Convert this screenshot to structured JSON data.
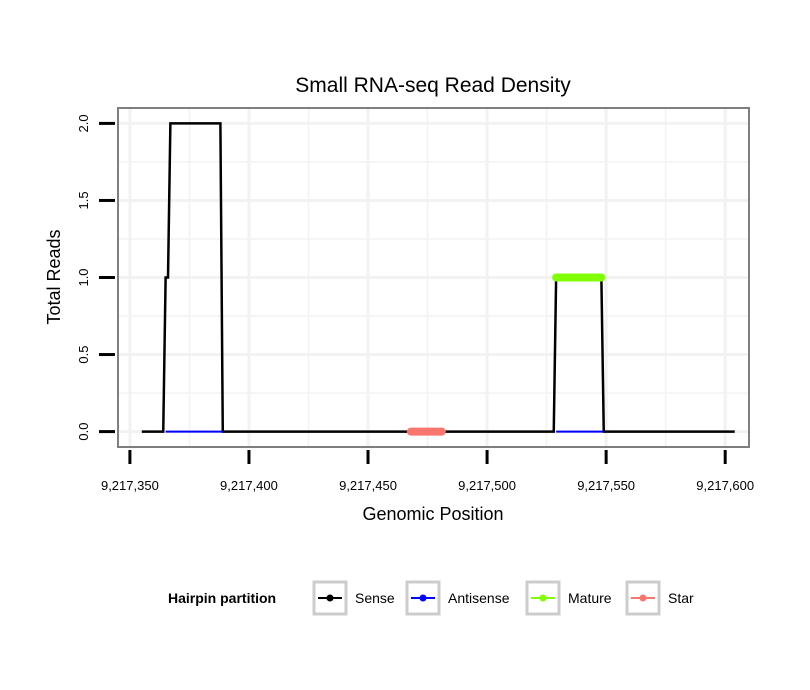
{
  "chart_data": {
    "type": "line",
    "title": "Small RNA-seq Read Density",
    "xlabel": "Genomic Position",
    "ylabel": "Total Reads",
    "xlim": [
      9217345,
      9217610
    ],
    "ylim": [
      -0.1,
      2.1
    ],
    "x_ticks": [
      9217350,
      9217400,
      9217450,
      9217500,
      9217550,
      9217600
    ],
    "x_tick_labels": [
      "9,217,350",
      "9,217,400",
      "9,217,450",
      "9,217,500",
      "9,217,550",
      "9,217,600"
    ],
    "y_ticks": [
      0,
      0.5,
      1,
      1.5,
      2
    ],
    "y_tick_labels": [
      "0.0",
      "0.5",
      "1.0",
      "1.5",
      "2.0"
    ],
    "grid": true,
    "legend": {
      "title": "Hairpin partition",
      "position": "bottom",
      "entries": [
        "Sense",
        "Antisense",
        "Mature",
        "Star"
      ]
    },
    "series": [
      {
        "name": "Sense",
        "color": "#000000",
        "style": "line",
        "x": [
          9217355,
          9217364,
          9217365,
          9217366,
          9217367,
          9217388,
          9217389,
          9217528,
          9217529,
          9217548,
          9217549,
          9217604
        ],
        "y": [
          0,
          0,
          1,
          1,
          2,
          2,
          0,
          0,
          1,
          1,
          0,
          0
        ]
      },
      {
        "name": "Antisense",
        "color": "#0000FF",
        "style": "line",
        "segments": [
          {
            "x": [
              9217365,
              9217389
            ],
            "y": [
              0,
              0
            ]
          },
          {
            "x": [
              9217529,
              9217549
            ],
            "y": [
              0,
              0
            ]
          }
        ]
      },
      {
        "name": "Mature",
        "color": "#80FF00",
        "style": "thick",
        "x": [
          9217529,
          9217548
        ],
        "y": [
          1,
          1
        ]
      },
      {
        "name": "Star",
        "color": "#F8766D",
        "style": "thick",
        "x": [
          9217468,
          9217481
        ],
        "y": [
          0,
          0
        ]
      }
    ]
  }
}
